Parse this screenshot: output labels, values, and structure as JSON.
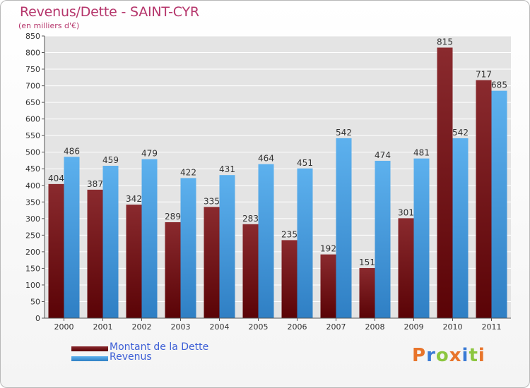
{
  "header": {
    "title": "Revenus/Dette - SAINT-CYR",
    "subtitle": "(en milliers d'€)"
  },
  "logo": {
    "text": "Proxiti",
    "colors": [
      "#e8742a",
      "#3a7bd5",
      "#8cc63f",
      "#e8742a",
      "#3a7bd5",
      "#8cc63f",
      "#e8742a"
    ]
  },
  "chart_data": {
    "type": "bar",
    "title": "Revenus/Dette - SAINT-CYR",
    "subtitle": "(en milliers d'€)",
    "categories": [
      "2000",
      "2001",
      "2002",
      "2003",
      "2004",
      "2005",
      "2006",
      "2007",
      "2008",
      "2009",
      "2010",
      "2011"
    ],
    "series": [
      {
        "name": "Montant de la Dette",
        "color": "#7b1518",
        "values": [
          404,
          387,
          342,
          289,
          335,
          283,
          235,
          192,
          151,
          301,
          815,
          717
        ]
      },
      {
        "name": "Revenus",
        "color": "#4da6e8",
        "values": [
          486,
          459,
          479,
          422,
          431,
          464,
          451,
          542,
          474,
          481,
          542,
          685
        ]
      }
    ],
    "ylim": [
      0,
      850
    ],
    "yticks": [
      0,
      50,
      100,
      150,
      200,
      250,
      300,
      350,
      400,
      450,
      500,
      550,
      600,
      650,
      700,
      750,
      800,
      850
    ],
    "grid": true,
    "legend_position": "bottom-left"
  }
}
